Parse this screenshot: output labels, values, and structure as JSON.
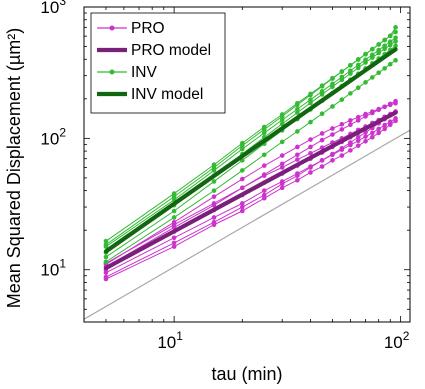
{
  "chart_data": {
    "type": "line",
    "xscale": "log",
    "yscale": "log",
    "xlim": [
      4,
      110
    ],
    "ylim": [
      4,
      1000
    ],
    "xlabel": "tau (min)",
    "ylabel": "Mean Squared Displacement (µm²)",
    "xticks": [
      {
        "value": 10,
        "base": "10",
        "exp": "1"
      },
      {
        "value": 100,
        "base": "10",
        "exp": "2"
      }
    ],
    "yticks": [
      {
        "value": 10,
        "base": "10",
        "exp": "1"
      },
      {
        "value": 100,
        "base": "10",
        "exp": "2"
      },
      {
        "value": 1000,
        "base": "10",
        "exp": "3"
      }
    ],
    "legend_position": "top-left",
    "colors": {
      "pro": "#cc33cc",
      "pro_model": "#7a1f7a",
      "inv": "#33bb33",
      "inv_model": "#116611",
      "reference": "#aaaaaa"
    },
    "x": [
      5,
      10,
      15,
      20,
      25,
      30,
      35,
      40,
      45,
      50,
      55,
      60,
      65,
      70,
      75,
      80,
      85,
      90,
      95
    ],
    "legend": [
      {
        "label": "PRO",
        "key": "pro",
        "style": "markers"
      },
      {
        "label": "PRO model",
        "key": "pro_model",
        "style": "thick"
      },
      {
        "label": "INV",
        "key": "inv",
        "style": "markers"
      },
      {
        "label": "INV model",
        "key": "inv_model",
        "style": "thick"
      }
    ],
    "series": [
      {
        "group": "pro",
        "values": [
          11.2,
          22,
          32,
          42,
          52,
          60,
          69,
          77,
          85,
          93,
          100,
          108,
          116,
          123,
          131,
          138,
          146,
          153,
          160
        ]
      },
      {
        "group": "pro",
        "values": [
          10,
          19.5,
          28.5,
          37,
          46,
          54,
          62,
          70,
          78,
          86,
          94,
          102,
          110,
          118,
          126,
          134,
          142,
          150,
          158
        ]
      },
      {
        "group": "pro",
        "values": [
          8.8,
          16,
          23,
          30,
          37,
          45,
          52,
          60,
          68,
          76,
          84,
          93,
          102,
          111,
          120,
          130,
          140,
          150,
          160
        ]
      },
      {
        "group": "pro",
        "values": [
          8.5,
          15,
          22,
          28,
          35,
          42,
          48,
          55,
          61,
          68,
          74,
          81,
          88,
          95,
          102,
          110,
          118,
          127,
          136
        ]
      },
      {
        "group": "pro",
        "values": [
          11,
          23,
          36,
          49,
          62,
          74,
          86,
          98,
          109,
          119,
          128,
          137,
          145,
          153,
          160,
          167,
          174,
          180,
          185
        ]
      },
      {
        "group": "pro",
        "values": [
          10.5,
          21,
          31,
          42,
          53,
          64,
          75,
          86,
          97,
          107,
          117,
          127,
          137,
          147,
          156,
          165,
          174,
          183,
          192
        ]
      },
      {
        "group": "pro",
        "values": [
          9.5,
          17.5,
          25,
          32,
          40,
          47,
          54,
          61,
          68,
          75,
          82,
          89,
          96,
          103,
          110,
          118,
          126,
          134,
          142
        ]
      },
      {
        "group": "pro_model",
        "values": [
          10.3,
          19.6,
          28.6,
          37.4,
          46,
          54.5,
          62.9,
          71.1,
          79.3,
          87.4,
          95.4,
          103.3,
          111.2,
          119,
          126.7,
          134.4,
          142,
          149.6,
          157.2
        ]
      },
      {
        "group": "inv",
        "values": [
          16.5,
          38,
          63,
          92,
          122,
          152,
          185,
          218,
          252,
          287,
          323,
          360,
          398,
          437,
          477,
          518,
          560,
          603,
          645
        ]
      },
      {
        "group": "inv",
        "values": [
          15,
          34,
          57,
          83,
          110,
          138,
          167,
          197,
          228,
          260,
          293,
          327,
          362,
          397,
          433,
          470,
          507,
          545,
          583
        ]
      },
      {
        "group": "inv",
        "values": [
          12.5,
          28,
          47,
          68,
          91,
          115,
          140,
          166,
          193,
          221,
          250,
          280,
          310,
          341,
          373,
          405,
          438,
          472,
          506
        ]
      },
      {
        "group": "inv",
        "values": [
          11.5,
          25,
          40,
          57,
          75,
          94,
          113,
          133,
          154,
          175,
          197,
          220,
          243,
          267,
          291,
          316,
          341,
          367,
          393
        ]
      },
      {
        "group": "inv",
        "values": [
          13.5,
          31,
          52,
          76,
          102,
          129,
          157,
          186,
          216,
          247,
          279,
          311,
          344,
          378,
          412,
          446,
          480,
          514,
          548
        ]
      },
      {
        "group": "inv",
        "values": [
          15.5,
          36,
          60,
          88,
          117,
          147,
          180,
          214,
          249,
          285,
          322,
          360,
          399,
          438,
          478,
          519,
          561,
          603,
          700
        ]
      },
      {
        "group": "inv_model",
        "values": [
          13.8,
          31.8,
          51.8,
          73.2,
          95.8,
          119.3,
          143.6,
          168.6,
          194.2,
          220.5,
          247.2,
          274.4,
          302.1,
          330.2,
          358.7,
          387.6,
          416.8,
          446.3,
          476
        ]
      }
    ],
    "reference_line": {
      "x": [
        4,
        110
      ],
      "y": [
        4.2,
        115.5
      ]
    }
  }
}
